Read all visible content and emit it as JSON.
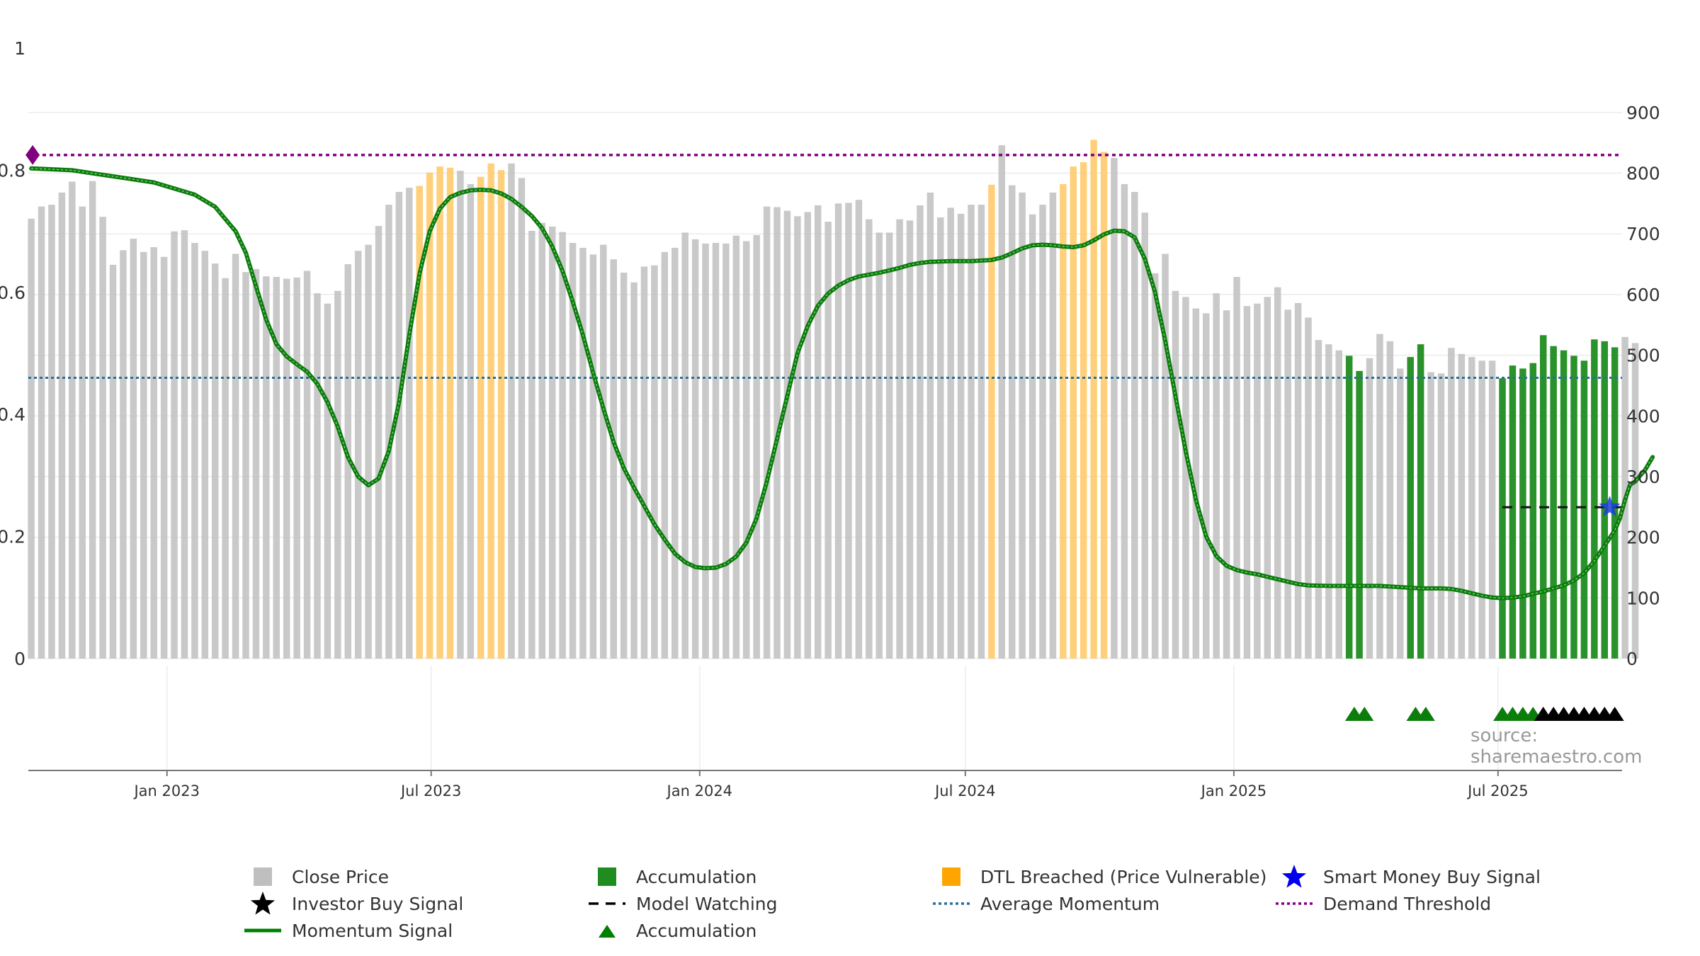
{
  "chart_data": {
    "type": "bar",
    "title": "",
    "left_axis": {
      "ticks": [
        "0",
        "0.2",
        "0.4",
        "0.6",
        "0.8",
        "1"
      ],
      "values": [
        0,
        0.2,
        0.4,
        0.6,
        0.8,
        1
      ],
      "range": [
        0,
        1
      ]
    },
    "right_axis": {
      "ticks": [
        "0",
        "100",
        "200",
        "300",
        "400",
        "500",
        "600",
        "700",
        "800",
        "900"
      ],
      "values": [
        0,
        100,
        200,
        300,
        400,
        500,
        600,
        700,
        800,
        900
      ],
      "range": [
        0,
        1006
      ]
    },
    "x_axis": {
      "range": [
        "2022-09-28",
        "2025-09-24"
      ],
      "ticks": [
        {
          "label": "Jan 2023",
          "date": "2023-01-01"
        },
        {
          "label": "Jul 2023",
          "date": "2023-07-01"
        },
        {
          "label": "Jan 2024",
          "date": "2024-01-01"
        },
        {
          "label": "Jul 2024",
          "date": "2024-07-01"
        },
        {
          "label": "Jan 2025",
          "date": "2025-01-01"
        },
        {
          "label": "Jul 2025",
          "date": "2025-07-01"
        }
      ]
    },
    "bar_start": "2022-09-30",
    "bar_interval_days": 7,
    "close_prices": [
      725,
      745,
      748,
      768,
      786,
      745,
      787,
      728,
      649,
      673,
      692,
      670,
      678,
      662,
      704,
      706,
      685,
      672,
      651,
      627,
      667,
      637,
      642,
      630,
      629,
      626,
      628,
      639,
      602,
      585,
      606,
      650,
      672,
      682,
      713,
      748,
      769,
      776,
      779,
      801,
      811,
      809,
      804,
      782,
      794,
      816,
      805,
      816,
      792,
      705,
      718,
      712,
      703,
      685,
      677,
      666,
      682,
      658,
      636,
      620,
      646,
      648,
      670,
      677,
      702,
      691,
      684,
      685,
      684,
      697,
      688,
      698,
      745,
      744,
      738,
      729,
      736,
      747,
      720,
      750,
      751,
      756,
      724,
      702,
      702,
      724,
      722,
      747,
      768,
      727,
      743,
      733,
      748,
      748,
      781,
      846,
      780,
      768,
      732,
      748,
      768,
      782,
      811,
      818,
      855,
      835,
      825,
      782,
      769,
      735,
      635,
      667,
      606,
      596,
      577,
      569,
      602,
      574,
      629,
      581,
      585,
      596,
      612,
      575,
      586,
      562,
      525,
      518,
      508,
      499,
      474,
      495,
      535,
      523,
      478,
      497,
      518,
      472,
      470,
      512,
      502,
      497,
      491,
      491,
      462,
      483,
      478,
      487,
      533,
      515,
      508,
      499,
      491,
      526,
      523,
      513,
      530,
      520
    ],
    "accumulation_bar_indices": [
      129,
      130,
      135,
      136,
      144,
      145,
      146,
      147,
      148,
      149,
      150,
      151,
      152,
      153,
      154,
      155
    ],
    "dtl_breached_bar_indices": [
      38,
      39,
      40,
      41,
      44,
      45,
      46,
      94,
      101,
      102,
      103,
      104,
      105
    ],
    "momentum_signal": [
      [
        0,
        0.803
      ],
      [
        4,
        0.8
      ],
      [
        8,
        0.79
      ],
      [
        12,
        0.78
      ],
      [
        16,
        0.76
      ],
      [
        18,
        0.74
      ],
      [
        19,
        0.72
      ],
      [
        20,
        0.7
      ],
      [
        21,
        0.665
      ],
      [
        22,
        0.61
      ],
      [
        23,
        0.555
      ],
      [
        24,
        0.515
      ],
      [
        25,
        0.495
      ],
      [
        26,
        0.482
      ],
      [
        27,
        0.47
      ],
      [
        28,
        0.45
      ],
      [
        29,
        0.42
      ],
      [
        30,
        0.38
      ],
      [
        31,
        0.33
      ],
      [
        32,
        0.298
      ],
      [
        33,
        0.284
      ],
      [
        34,
        0.295
      ],
      [
        35,
        0.34
      ],
      [
        36,
        0.42
      ],
      [
        37,
        0.53
      ],
      [
        38,
        0.63
      ],
      [
        39,
        0.7
      ],
      [
        40,
        0.737
      ],
      [
        41,
        0.756
      ],
      [
        42,
        0.763
      ],
      [
        43,
        0.767
      ],
      [
        44,
        0.768
      ],
      [
        45,
        0.767
      ],
      [
        46,
        0.762
      ],
      [
        47,
        0.753
      ],
      [
        48,
        0.74
      ],
      [
        49,
        0.725
      ],
      [
        50,
        0.705
      ],
      [
        51,
        0.675
      ],
      [
        52,
        0.635
      ],
      [
        53,
        0.585
      ],
      [
        54,
        0.53
      ],
      [
        55,
        0.468
      ],
      [
        56,
        0.41
      ],
      [
        57,
        0.355
      ],
      [
        58,
        0.312
      ],
      [
        59,
        0.28
      ],
      [
        60,
        0.25
      ],
      [
        61,
        0.22
      ],
      [
        62,
        0.195
      ],
      [
        63,
        0.172
      ],
      [
        64,
        0.158
      ],
      [
        65,
        0.15
      ],
      [
        66,
        0.148
      ],
      [
        67,
        0.149
      ],
      [
        68,
        0.155
      ],
      [
        69,
        0.167
      ],
      [
        70,
        0.19
      ],
      [
        71,
        0.23
      ],
      [
        72,
        0.29
      ],
      [
        73,
        0.36
      ],
      [
        74,
        0.43
      ],
      [
        75,
        0.5
      ],
      [
        76,
        0.545
      ],
      [
        77,
        0.578
      ],
      [
        78,
        0.598
      ],
      [
        79,
        0.611
      ],
      [
        80,
        0.62
      ],
      [
        81,
        0.626
      ],
      [
        82,
        0.629
      ],
      [
        83,
        0.632
      ],
      [
        84,
        0.636
      ],
      [
        85,
        0.64
      ],
      [
        86,
        0.645
      ],
      [
        87,
        0.648
      ],
      [
        88,
        0.65
      ],
      [
        90,
        0.651
      ],
      [
        92,
        0.651
      ],
      [
        94,
        0.653
      ],
      [
        95,
        0.657
      ],
      [
        96,
        0.664
      ],
      [
        97,
        0.672
      ],
      [
        98,
        0.677
      ],
      [
        99,
        0.678
      ],
      [
        100,
        0.677
      ],
      [
        101,
        0.675
      ],
      [
        102,
        0.674
      ],
      [
        103,
        0.677
      ],
      [
        104,
        0.685
      ],
      [
        105,
        0.695
      ],
      [
        106,
        0.701
      ],
      [
        107,
        0.7
      ],
      [
        108,
        0.69
      ],
      [
        109,
        0.655
      ],
      [
        110,
        0.6
      ],
      [
        111,
        0.52
      ],
      [
        112,
        0.43
      ],
      [
        113,
        0.34
      ],
      [
        114,
        0.26
      ],
      [
        115,
        0.2
      ],
      [
        116,
        0.168
      ],
      [
        117,
        0.152
      ],
      [
        118,
        0.145
      ],
      [
        119,
        0.141
      ],
      [
        120,
        0.138
      ],
      [
        121,
        0.134
      ],
      [
        122,
        0.13
      ],
      [
        123,
        0.126
      ],
      [
        124,
        0.122
      ],
      [
        125,
        0.12
      ],
      [
        127,
        0.119
      ],
      [
        130,
        0.119
      ],
      [
        132,
        0.119
      ],
      [
        134,
        0.117
      ],
      [
        136,
        0.115
      ],
      [
        138,
        0.115
      ],
      [
        139,
        0.114
      ],
      [
        140,
        0.111
      ],
      [
        141,
        0.107
      ],
      [
        142,
        0.103
      ],
      [
        143,
        0.1
      ],
      [
        144,
        0.099
      ],
      [
        145,
        0.1
      ],
      [
        146,
        0.102
      ],
      [
        147,
        0.106
      ],
      [
        148,
        0.11
      ],
      [
        149,
        0.115
      ],
      [
        150,
        0.12
      ],
      [
        151,
        0.128
      ],
      [
        152,
        0.14
      ],
      [
        153,
        0.16
      ],
      [
        154,
        0.185
      ],
      [
        155,
        0.21
      ],
      [
        155.5,
        0.23
      ],
      [
        156,
        0.26
      ],
      [
        156.5,
        0.285
      ],
      [
        157,
        0.29
      ],
      [
        158,
        0.31
      ],
      [
        158.7,
        0.33
      ]
    ],
    "average_momentum": 0.46,
    "demand_threshold": 0.825,
    "model_watching": {
      "value": 0.248,
      "start_index": 144,
      "end_index": 156
    },
    "smart_money_buy_signal": {
      "index": 154.5,
      "value": 0.248
    },
    "demand_marker": {
      "index": 0,
      "value": 0.825
    },
    "accumulation_triangle_indices": [
      129.5,
      130.5,
      135.5,
      136.5,
      144,
      145,
      146,
      147
    ],
    "investor_buy_signal_indices": [
      148,
      149,
      150,
      151,
      152,
      153,
      154,
      155
    ],
    "legend": [
      {
        "label": "Close Price",
        "symbol": "square",
        "color": "#bfbfbf"
      },
      {
        "label": "Accumulation",
        "symbol": "square",
        "color": "#1f8c1f"
      },
      {
        "label": "DTL Breached (Price Vulnerable)",
        "symbol": "square",
        "color": "#ffa500"
      },
      {
        "label": "Smart Money Buy Signal",
        "symbol": "star",
        "color": "#0000ee"
      },
      {
        "label": "Investor Buy Signal",
        "symbol": "star",
        "color": "#000000"
      },
      {
        "label": "Model Watching",
        "symbol": "dash",
        "color": "#000000"
      },
      {
        "label": "Average Momentum",
        "symbol": "dot",
        "color": "#2a6f97"
      },
      {
        "label": "Demand Threshold",
        "symbol": "dot",
        "color": "#800080"
      },
      {
        "label": "Momentum Signal",
        "symbol": "line",
        "color": "#008000"
      },
      {
        "label": "Accumulation",
        "symbol": "triangle",
        "color": "#008000"
      }
    ],
    "source_text": "source: sharemaestro.com"
  }
}
